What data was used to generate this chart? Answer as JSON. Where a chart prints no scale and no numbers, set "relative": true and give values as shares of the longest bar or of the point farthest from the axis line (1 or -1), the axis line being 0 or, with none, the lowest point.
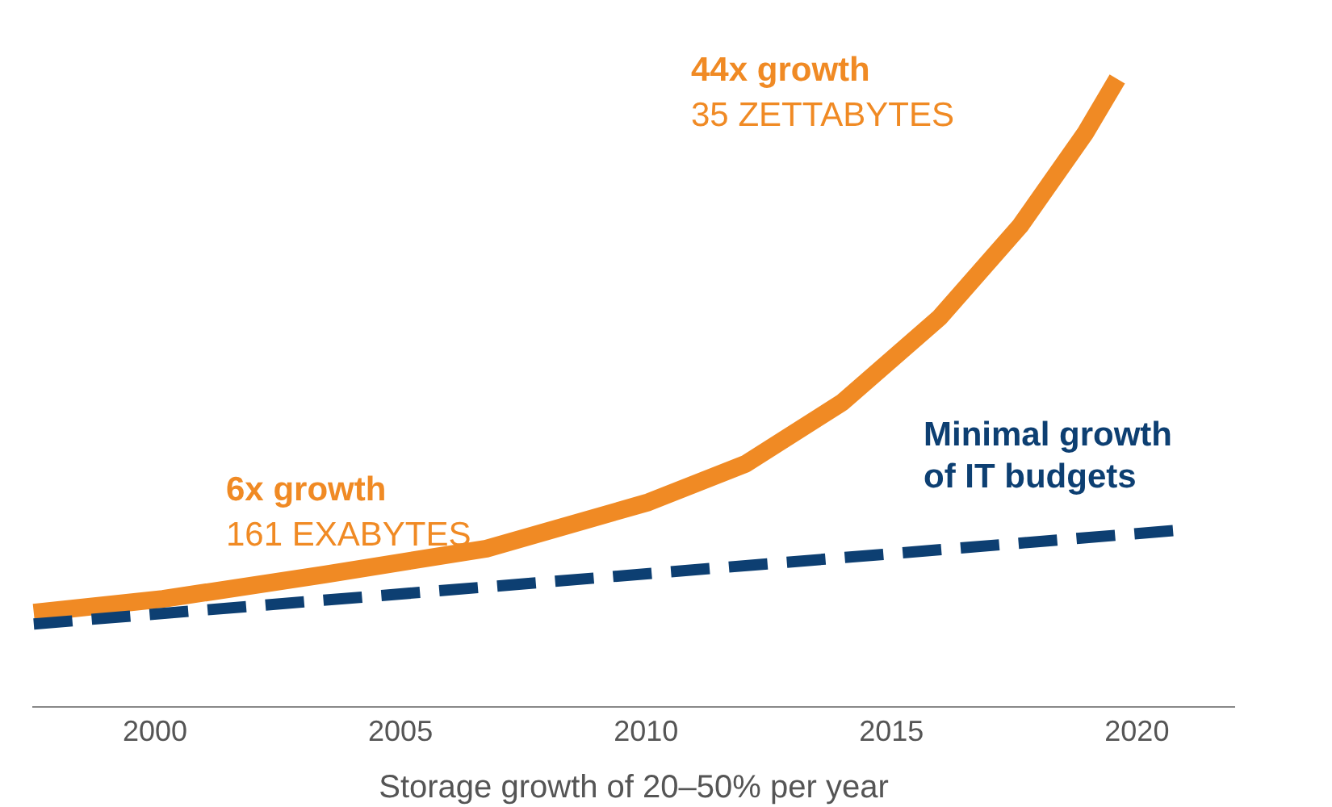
{
  "chart_data": {
    "type": "line",
    "relative": true,
    "tick_labels": "x",
    "marker": "none",
    "xlabel": "Storage growth of 20–50% per year",
    "xlim": [
      1997.5,
      2022
    ],
    "xticks": [
      2000,
      2005,
      2010,
      2015,
      2020
    ],
    "series": [
      {
        "color": "#f08a24",
        "line_style": "solid",
        "x": [
          1997.53,
          2000.16,
          2003.46,
          2006.75,
          2010.05,
          2012.03,
          2014.0,
          2015.98,
          2017.63,
          2018.95,
          2019.6
        ],
        "values": [
          0.15,
          0.172,
          0.211,
          0.252,
          0.326,
          0.387,
          0.485,
          0.62,
          0.767,
          0.914,
          1.0
        ]
      },
      {
        "color": "#0d3f72",
        "line_style": "dashed",
        "x": [
          1997.53,
          2020.92
        ],
        "values": [
          0.132,
          0.282
        ]
      }
    ],
    "annotations": [
      "44x growth",
      "35 ZETTABYTES",
      "6x growth",
      "161 EXABYTES",
      "Minimal growth",
      "of IT budgets"
    ]
  }
}
